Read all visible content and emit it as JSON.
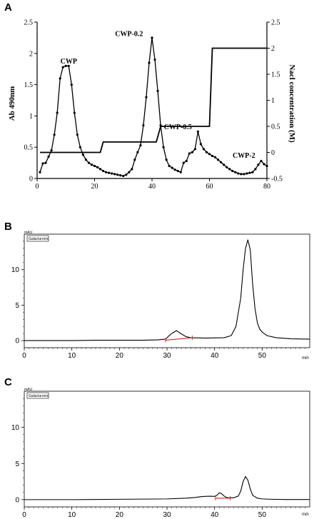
{
  "chart_data": [
    {
      "type": "line",
      "panel": "A",
      "xlabel": "",
      "ylabel": "Ab 490nm",
      "y2label": "Nacl concentration (M)",
      "xlim": [
        0,
        80
      ],
      "ylim": [
        0,
        2.5
      ],
      "y2lim": [
        -0.5,
        2.5
      ],
      "x_ticks": [
        "0",
        "20",
        "40",
        "60",
        "80"
      ],
      "y_ticks": [
        "0",
        "0.5",
        "1",
        "1.5",
        "2",
        "2.5"
      ],
      "y2_ticks": [
        "-0.5",
        "0",
        "0.5",
        "1",
        "1.5",
        "2",
        "2.5"
      ],
      "x_tick_values": [
        0,
        20,
        40,
        60,
        80
      ],
      "y_tick_values": [
        0,
        0.5,
        1,
        1.5,
        2,
        2.5
      ],
      "y2_tick_values": [
        -0.5,
        0,
        0.5,
        1,
        1.5,
        2,
        2.5
      ],
      "annotations": [
        {
          "text": "CWP",
          "x": 11,
          "y": 1.84
        },
        {
          "text": "CWP-0.2",
          "x": 32,
          "y": 2.28
        },
        {
          "text": "CWP-0.5",
          "x": 49,
          "y": 0.79
        },
        {
          "text": "CWP-2",
          "x": 72,
          "y": 0.33
        }
      ],
      "series": [
        {
          "axis": "left",
          "markers": true,
          "x": [
            1,
            2,
            3,
            4,
            5,
            6,
            7,
            8,
            9,
            10,
            11,
            12,
            13,
            14,
            15,
            16,
            17,
            18,
            19,
            20,
            21,
            22,
            23,
            24,
            25,
            26,
            27,
            28,
            29,
            30,
            31,
            32,
            33,
            34,
            35,
            36,
            37,
            38,
            39,
            40,
            41,
            42,
            43,
            44,
            45,
            46,
            47,
            48,
            49,
            50,
            51,
            52,
            53,
            54,
            55,
            56,
            57,
            58,
            59,
            60,
            61,
            62,
            63,
            64,
            65,
            66,
            67,
            68,
            69,
            70,
            71,
            72,
            73,
            74,
            75,
            76,
            77,
            78,
            79,
            80
          ],
          "y": [
            0.1,
            0.24,
            0.25,
            0.35,
            0.45,
            0.7,
            1.05,
            1.6,
            1.78,
            1.8,
            1.8,
            1.5,
            1.05,
            0.7,
            0.5,
            0.38,
            0.3,
            0.25,
            0.22,
            0.2,
            0.18,
            0.15,
            0.12,
            0.1,
            0.09,
            0.08,
            0.07,
            0.06,
            0.05,
            0.04,
            0.06,
            0.1,
            0.15,
            0.3,
            0.42,
            0.53,
            0.85,
            1.3,
            1.85,
            2.25,
            1.9,
            1.4,
            0.85,
            0.5,
            0.3,
            0.2,
            0.17,
            0.14,
            0.12,
            0.1,
            0.25,
            0.28,
            0.4,
            0.42,
            0.47,
            0.75,
            0.55,
            0.47,
            0.42,
            0.39,
            0.36,
            0.34,
            0.3,
            0.26,
            0.22,
            0.18,
            0.15,
            0.12,
            0.1,
            0.08,
            0.07,
            0.07,
            0.08,
            0.09,
            0.1,
            0.15,
            0.22,
            0.28,
            0.23,
            0.2
          ]
        },
        {
          "axis": "right",
          "markers": false,
          "x": [
            1,
            22,
            23,
            41.5,
            43,
            60,
            61,
            80
          ],
          "y": [
            0,
            0,
            0.2,
            0.2,
            0.5,
            0.5,
            2,
            2
          ]
        }
      ]
    },
    {
      "type": "line",
      "panel": "B",
      "legend": "Galacturonic",
      "xlabel": "min",
      "ylabel_unit": "mAU",
      "xlim": [
        0,
        60
      ],
      "ylim": [
        -1,
        15
      ],
      "x_ticks": [
        "0",
        "10",
        "20",
        "30",
        "40",
        "50"
      ],
      "x_tick_values": [
        0,
        10,
        20,
        30,
        40,
        50
      ],
      "y_ticks": [
        "0",
        "5",
        "10"
      ],
      "y_tick_values": [
        0,
        5,
        10
      ],
      "baseline_marker": {
        "x": [
          29.7,
          35.3
        ],
        "y": [
          0.05,
          0.4
        ]
      },
      "series": [
        {
          "x": [
            0,
            10,
            15,
            20,
            25,
            28,
            29.7,
            30.3,
            31,
            32,
            33,
            34,
            35,
            38,
            42,
            43.5,
            44.5,
            45.5,
            46,
            46.5,
            47,
            47.5,
            48,
            48.5,
            49,
            49.5,
            50,
            51,
            53,
            56,
            60
          ],
          "y": [
            0,
            0,
            0.05,
            0.05,
            0.05,
            0.1,
            0.2,
            0.6,
            1,
            1.4,
            0.95,
            0.55,
            0.4,
            0.35,
            0.4,
            0.7,
            2,
            6,
            10,
            13,
            14.2,
            12.8,
            8,
            4.5,
            2.5,
            1.6,
            1.2,
            0.7,
            0.4,
            0.25,
            0.2
          ]
        }
      ]
    },
    {
      "type": "line",
      "panel": "C",
      "legend": "Galacturonic",
      "xlabel": "min",
      "ylabel_unit": "mAU",
      "xlim": [
        0,
        60
      ],
      "ylim": [
        -1,
        15
      ],
      "x_ticks": [
        "0",
        "10",
        "20",
        "30",
        "40",
        "50"
      ],
      "x_tick_values": [
        0,
        10,
        20,
        30,
        40,
        50
      ],
      "y_ticks": [
        "0",
        "5",
        "10"
      ],
      "y_tick_values": [
        0,
        5,
        10
      ],
      "baseline_marker": {
        "x": [
          40.2,
          43.3
        ],
        "y": [
          0.2,
          0.2
        ]
      },
      "series": [
        {
          "x": [
            0,
            10,
            20,
            30,
            34,
            36,
            37,
            38,
            39,
            40,
            40.5,
            41,
            41.5,
            42,
            42.5,
            43,
            44,
            45,
            45.5,
            46,
            46.5,
            47,
            47.5,
            48,
            49,
            50,
            52,
            55,
            60
          ],
          "y": [
            0,
            0,
            0.05,
            0.1,
            0.2,
            0.3,
            0.4,
            0.45,
            0.48,
            0.45,
            0.6,
            0.95,
            0.8,
            0.5,
            0.3,
            0.25,
            0.25,
            0.5,
            1.2,
            2.5,
            3.2,
            2.7,
            1.5,
            0.6,
            0.2,
            0.1,
            0.05,
            0.02,
            0.02
          ]
        }
      ]
    }
  ]
}
